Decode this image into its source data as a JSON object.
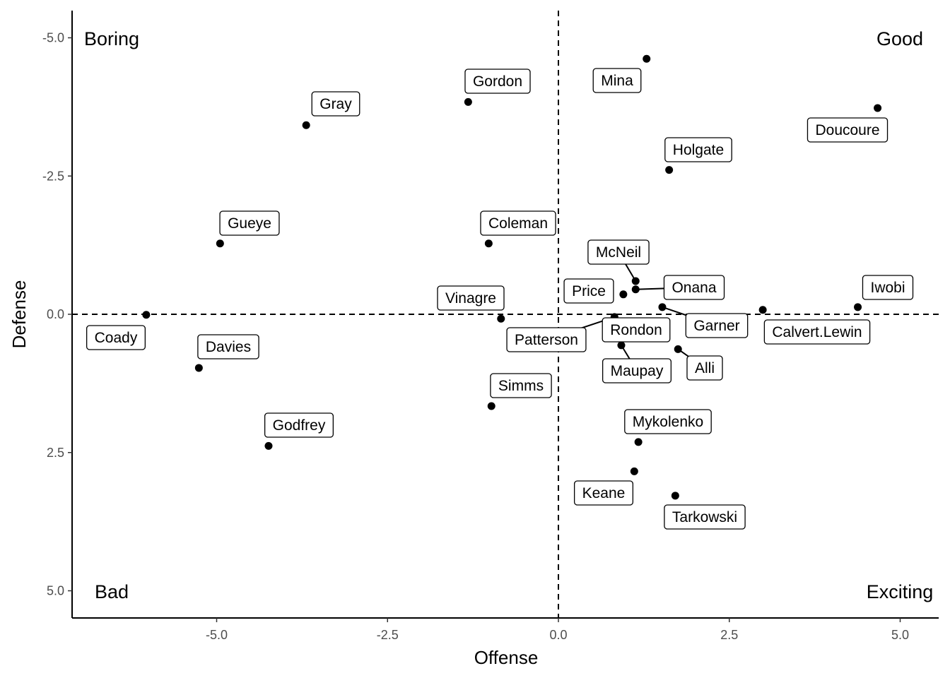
{
  "chart_data": {
    "type": "scatter",
    "xlabel": "Offense",
    "ylabel": "Defense",
    "xlim": [
      -7.1,
      5.6
    ],
    "ylim": [
      -5.5,
      5.5
    ],
    "y_reversed": true,
    "xticks": [
      "-5.0",
      "-2.5",
      "0.0",
      "2.5",
      "5.0"
    ],
    "xtick_values": [
      -5,
      -2.5,
      0,
      2.5,
      5
    ],
    "yticks": [
      "-5.0",
      "-2.5",
      "0.0",
      "2.5",
      "5.0"
    ],
    "ytick_values": [
      -5,
      -2.5,
      0,
      2.5,
      5
    ],
    "reference_lines": {
      "x": 0,
      "y": 0,
      "style": "dashed"
    },
    "quadrant_labels": {
      "top_left": "Boring",
      "top_right": "Good",
      "bottom_left": "Bad",
      "bottom_right": "Exciting"
    },
    "grid": false,
    "points": [
      {
        "name": "Mina",
        "x": 1.29,
        "y": -4.62
      },
      {
        "name": "Doucoure",
        "x": 4.67,
        "y": -3.73
      },
      {
        "name": "Holgate",
        "x": 1.62,
        "y": -2.61
      },
      {
        "name": "Gordon",
        "x": -1.32,
        "y": -3.84
      },
      {
        "name": "Gray",
        "x": -3.69,
        "y": -3.42
      },
      {
        "name": "Gueye",
        "x": -4.95,
        "y": -1.28
      },
      {
        "name": "Coleman",
        "x": -1.02,
        "y": -1.28
      },
      {
        "name": "McNeil",
        "x": 1.13,
        "y": -0.6
      },
      {
        "name": "Onana",
        "x": 1.13,
        "y": -0.45
      },
      {
        "name": "Price",
        "x": 0.95,
        "y": -0.36
      },
      {
        "name": "Garner",
        "x": 1.52,
        "y": -0.13
      },
      {
        "name": "Calvert.Lewin",
        "x": 2.99,
        "y": -0.08
      },
      {
        "name": "Iwobi",
        "x": 4.38,
        "y": -0.13
      },
      {
        "name": "Coady",
        "x": -6.03,
        "y": 0.01
      },
      {
        "name": "Vinagre",
        "x": -0.84,
        "y": 0.08
      },
      {
        "name": "Patterson",
        "x": 0.82,
        "y": 0.05
      },
      {
        "name": "Rondon",
        "x": 0.9,
        "y": 0.2
      },
      {
        "name": "Maupay",
        "x": 0.92,
        "y": 0.56
      },
      {
        "name": "Alli",
        "x": 1.75,
        "y": 0.63
      },
      {
        "name": "Davies",
        "x": -5.26,
        "y": 0.97
      },
      {
        "name": "Simms",
        "x": -0.98,
        "y": 1.66
      },
      {
        "name": "Godfrey",
        "x": -4.24,
        "y": 2.38
      },
      {
        "name": "Mykolenko",
        "x": 1.17,
        "y": 2.31
      },
      {
        "name": "Keane",
        "x": 1.11,
        "y": 2.84
      },
      {
        "name": "Tarkowski",
        "x": 1.71,
        "y": 3.28
      }
    ]
  }
}
